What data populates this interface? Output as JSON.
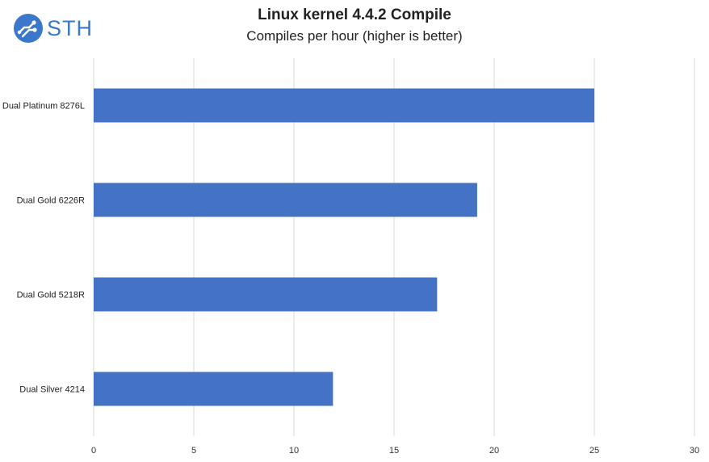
{
  "logo": {
    "text": "STH",
    "icon": "sth-circuit-logo-icon",
    "color": "#3b78c9"
  },
  "chart_data": {
    "type": "bar",
    "orientation": "horizontal",
    "title": "Linux kernel 4.4.2 Compile",
    "subtitle": "Compiles per hour (higher is better)",
    "categories": [
      "Dual Platinum 8276L",
      "Dual Gold 6226R",
      "Dual Gold 5218R",
      "Dual Silver 4214"
    ],
    "values": [
      25.0,
      19.15,
      17.15,
      11.95
    ],
    "xlim": [
      0,
      30
    ],
    "xticks": [
      0,
      5,
      10,
      15,
      20,
      25,
      30
    ],
    "grid": true,
    "legend": "none",
    "bar_color": "#4472c4",
    "grid_color": "#d9d9d9"
  }
}
